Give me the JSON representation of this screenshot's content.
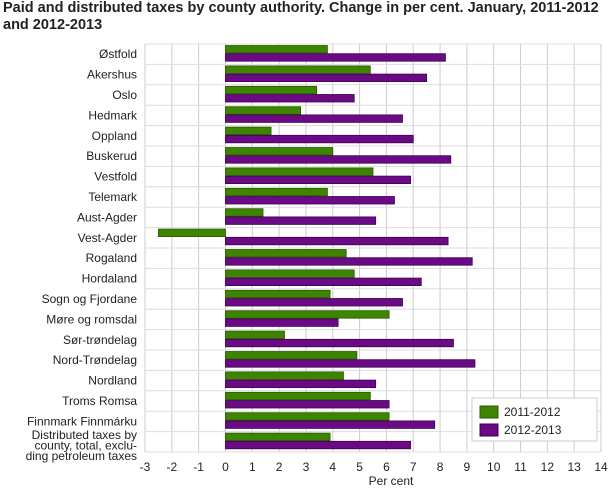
{
  "chart_data": {
    "type": "bar",
    "orientation": "horizontal",
    "title": "Paid and distributed taxes by county authority. Change in per cent. January, 2011-2012 and 2012-2013",
    "xlabel": "Per cent",
    "ylabel": "",
    "xlim": [
      -3,
      14
    ],
    "xticks": [
      -3,
      -2,
      -1,
      0,
      1,
      2,
      3,
      4,
      5,
      6,
      7,
      8,
      9,
      10,
      11,
      12,
      13,
      14
    ],
    "grid": true,
    "legend_position": "bottom-right",
    "categories": [
      "Østfold",
      "Akershus",
      "Oslo",
      "Hedmark",
      "Oppland",
      "Buskerud",
      "Vestfold",
      "Telemark",
      "Aust-Agder",
      "Vest-Agder",
      "Rogaland",
      "Hordaland",
      "Sogn og Fjordane",
      "Møre og romsdal",
      "Sør-trøndelag",
      "Nord-Trøndelag",
      "Nordland",
      "Troms Romsa",
      "Finnmark Finnmárku",
      "Distributed taxes by county, total, excluding petroleum taxes"
    ],
    "category_label_lines": {
      "19": [
        "Distributed taxes by",
        "county, total, exclu-",
        "ding petroleum taxes"
      ]
    },
    "series": [
      {
        "name": "2011-2012",
        "color": "#3d8400",
        "values": [
          3.8,
          5.4,
          3.4,
          2.8,
          1.7,
          4.0,
          5.5,
          3.8,
          1.4,
          -2.5,
          4.5,
          4.8,
          3.9,
          6.1,
          2.2,
          4.9,
          4.4,
          5.4,
          6.1,
          3.9
        ]
      },
      {
        "name": "2012-2013",
        "color": "#6a0a85",
        "values": [
          8.2,
          7.5,
          4.8,
          6.6,
          7.0,
          8.4,
          6.9,
          6.3,
          5.6,
          8.3,
          9.2,
          7.3,
          6.6,
          4.2,
          8.5,
          9.3,
          5.6,
          6.1,
          7.8,
          6.9
        ]
      }
    ]
  }
}
